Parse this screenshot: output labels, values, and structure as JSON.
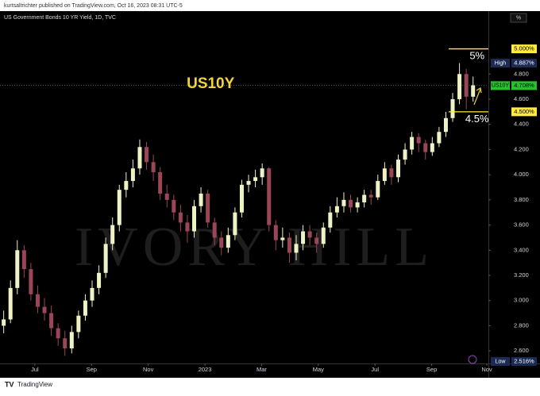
{
  "header": {
    "text": "kurtsaltrichter published on TradingView.com, Oct 16, 2023 08:31 UTC-5"
  },
  "footer": {
    "text": "TradingView"
  },
  "chart_data": {
    "type": "candlestick",
    "title": "US Government Bonds 10 YR Yield, 1D, TVC",
    "y_unit": "%",
    "up_color": "#eef2c4",
    "down_color": "#9a4656",
    "xlim": [
      4.77,
      22
    ],
    "ylim": [
      2.5,
      5.3
    ],
    "xticks": [
      {
        "value": 6,
        "label": "Jul"
      },
      {
        "value": 8,
        "label": "Sep"
      },
      {
        "value": 10,
        "label": "Nov"
      },
      {
        "value": 12,
        "label": "2023"
      },
      {
        "value": 14,
        "label": "Mar"
      },
      {
        "value": 16,
        "label": "May"
      },
      {
        "value": 18,
        "label": "Jul"
      },
      {
        "value": 20,
        "label": "Sep"
      },
      {
        "value": 22,
        "label": "Nov"
      }
    ],
    "yticks": [
      {
        "value": 4.8,
        "label": "4.800"
      },
      {
        "value": 4.6,
        "label": "4.600"
      },
      {
        "value": 4.4,
        "label": "4.400"
      },
      {
        "value": 4.2,
        "label": "4.200"
      },
      {
        "value": 4.0,
        "label": "4.000"
      },
      {
        "value": 3.8,
        "label": "3.800"
      },
      {
        "value": 3.6,
        "label": "3.600"
      },
      {
        "value": 3.4,
        "label": "3.400"
      },
      {
        "value": 3.2,
        "label": "3.200"
      },
      {
        "value": 3.0,
        "label": "3.000"
      },
      {
        "value": 2.8,
        "label": "2.800"
      },
      {
        "value": 2.6,
        "label": "2.600"
      }
    ],
    "x": [
      4.9,
      5.14,
      5.38,
      5.62,
      5.86,
      6.1,
      6.34,
      6.58,
      6.82,
      7.06,
      7.3,
      7.54,
      7.78,
      8.02,
      8.26,
      8.5,
      8.74,
      8.98,
      9.22,
      9.46,
      9.7,
      9.94,
      10.18,
      10.42,
      10.66,
      10.9,
      11.14,
      11.38,
      11.62,
      11.86,
      12.1,
      12.34,
      12.58,
      12.82,
      13.06,
      13.3,
      13.54,
      13.78,
      14.02,
      14.26,
      14.5,
      14.74,
      14.98,
      15.22,
      15.46,
      15.7,
      15.94,
      16.18,
      16.42,
      16.66,
      16.9,
      17.14,
      17.38,
      17.62,
      17.86,
      18.1,
      18.34,
      18.58,
      18.82,
      19.06,
      19.3,
      19.54,
      19.78,
      20.02,
      20.26,
      20.5,
      20.74,
      20.98,
      21.22,
      21.46
    ],
    "open": [
      2.8,
      2.85,
      3.1,
      3.4,
      3.25,
      3.05,
      2.95,
      2.9,
      2.78,
      2.7,
      2.62,
      2.75,
      2.88,
      3.0,
      3.1,
      3.22,
      3.45,
      3.6,
      3.88,
      3.95,
      4.05,
      4.22,
      4.1,
      4.02,
      3.85,
      3.8,
      3.7,
      3.62,
      3.55,
      3.75,
      3.85,
      3.62,
      3.5,
      3.42,
      3.52,
      3.7,
      3.92,
      3.95,
      3.98,
      4.05,
      3.6,
      3.48,
      3.5,
      3.38,
      3.45,
      3.55,
      3.5,
      3.45,
      3.58,
      3.7,
      3.75,
      3.8,
      3.74,
      3.78,
      3.84,
      3.82,
      3.95,
      4.05,
      3.98,
      4.12,
      4.2,
      4.3,
      4.25,
      4.18,
      4.25,
      4.34,
      4.45,
      4.6,
      4.8,
      4.62
    ],
    "high": [
      2.92,
      3.16,
      3.48,
      3.44,
      3.3,
      3.12,
      3.02,
      2.96,
      2.82,
      2.76,
      2.8,
      2.92,
      3.05,
      3.16,
      3.28,
      3.5,
      3.66,
      3.92,
      4.02,
      4.12,
      4.28,
      4.26,
      4.16,
      4.06,
      3.92,
      3.84,
      3.76,
      3.68,
      3.8,
      3.9,
      3.88,
      3.66,
      3.55,
      3.58,
      3.74,
      3.96,
      4.0,
      4.04,
      4.09,
      4.06,
      3.64,
      3.58,
      3.54,
      3.52,
      3.6,
      3.6,
      3.54,
      3.62,
      3.75,
      3.82,
      3.86,
      3.84,
      3.82,
      3.88,
      3.88,
      4.0,
      4.1,
      4.08,
      4.16,
      4.25,
      4.34,
      4.33,
      4.28,
      4.3,
      4.38,
      4.5,
      4.65,
      4.887,
      4.84,
      4.78
    ],
    "low": [
      2.74,
      2.82,
      3.05,
      3.18,
      3.0,
      2.9,
      2.84,
      2.72,
      2.64,
      2.56,
      2.58,
      2.7,
      2.84,
      2.95,
      3.05,
      3.18,
      3.4,
      3.55,
      3.82,
      3.9,
      4.0,
      4.04,
      3.95,
      3.8,
      3.74,
      3.64,
      3.55,
      3.46,
      3.5,
      3.7,
      3.58,
      3.44,
      3.36,
      3.38,
      3.48,
      3.66,
      3.86,
      3.9,
      3.92,
      3.55,
      3.4,
      3.42,
      3.3,
      3.32,
      3.4,
      3.44,
      3.38,
      3.42,
      3.54,
      3.66,
      3.7,
      3.7,
      3.7,
      3.74,
      3.76,
      3.8,
      3.92,
      3.92,
      3.94,
      4.08,
      4.16,
      4.18,
      4.12,
      4.15,
      4.22,
      4.3,
      4.42,
      4.56,
      4.52,
      4.58
    ],
    "close": [
      2.85,
      3.1,
      3.4,
      3.25,
      3.05,
      2.95,
      2.9,
      2.78,
      2.7,
      2.62,
      2.75,
      2.88,
      3.0,
      3.1,
      3.22,
      3.45,
      3.6,
      3.88,
      3.95,
      4.05,
      4.22,
      4.1,
      4.02,
      3.85,
      3.8,
      3.7,
      3.62,
      3.55,
      3.75,
      3.85,
      3.62,
      3.5,
      3.42,
      3.52,
      3.7,
      3.92,
      3.95,
      3.98,
      4.05,
      3.6,
      3.48,
      3.5,
      3.38,
      3.45,
      3.55,
      3.5,
      3.45,
      3.58,
      3.7,
      3.75,
      3.8,
      3.74,
      3.78,
      3.84,
      3.82,
      3.95,
      4.05,
      3.98,
      4.12,
      4.2,
      4.3,
      4.25,
      4.18,
      4.25,
      4.34,
      4.45,
      4.6,
      4.8,
      4.62,
      4.71
    ],
    "price_tags": [
      {
        "value": 5.0,
        "label": "5.000%",
        "color": "#ffeb3b",
        "text_color": "#000000",
        "line": true
      },
      {
        "name": "High",
        "value": 4.887,
        "label": "4.887%",
        "color": "#1c2b55",
        "text_color": "#ffffff",
        "line": false
      },
      {
        "name": "US10Y",
        "value": 4.708,
        "label": "4.708%",
        "color": "#26c12e",
        "text_color": "#000000",
        "line": false
      },
      {
        "value": 4.5,
        "label": "4.500%",
        "color": "#ffeb3b",
        "text_color": "#000000",
        "line": true
      },
      {
        "name": "Low",
        "value": 2.516,
        "label": "2.516%",
        "color": "#1c2b55",
        "text_color": "#ffffff",
        "line": false
      }
    ],
    "annotations": [
      {
        "text": "US10Y",
        "x": 12.2,
        "y": 4.72,
        "color": "#f5d33a",
        "size": 19
      },
      {
        "text": "5%",
        "x": 21.6,
        "y": 4.94,
        "color": "#ffffff",
        "size": 13
      },
      {
        "text": "4.5%",
        "x": 21.6,
        "y": 4.44,
        "color": "#ffffff",
        "size": 13
      }
    ],
    "watermark": "IVORY HILL"
  }
}
